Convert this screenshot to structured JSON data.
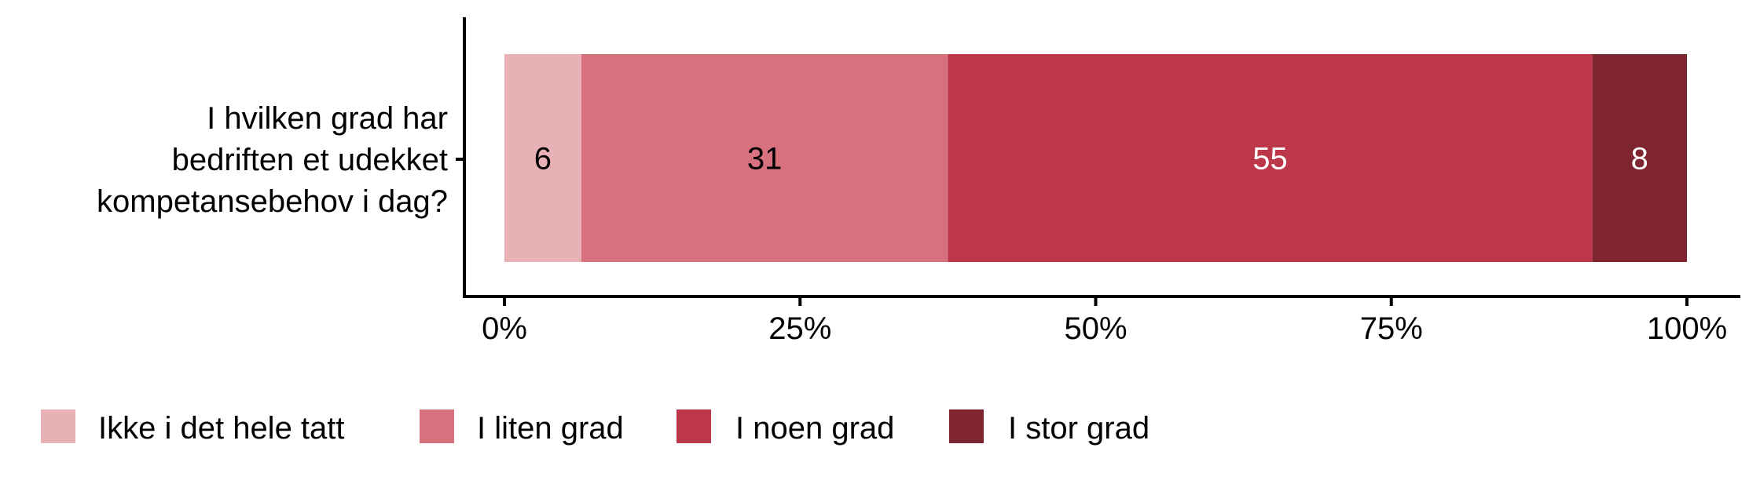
{
  "chart_data": {
    "type": "bar",
    "orientation": "horizontal",
    "stacked": true,
    "categories": [
      "I hvilken grad har bedriften et udekket kompetansebehov i dag?"
    ],
    "category_lines": [
      "I hvilken grad har",
      "bedriften et udekket",
      "kompetansebehov i dag?"
    ],
    "series": [
      {
        "name": "Ikke i det hele tatt",
        "values": [
          6.5
        ],
        "label": "6",
        "color": "#e8b1b6",
        "label_color": "#000000"
      },
      {
        "name": "I liten grad",
        "values": [
          31
        ],
        "label": "31",
        "color": "#d6717d",
        "label_color": "#000000"
      },
      {
        "name": "I noen grad",
        "values": [
          54.5
        ],
        "label": "55",
        "color": "#bc3749",
        "label_color": "#ffffff"
      },
      {
        "name": "I stor grad",
        "values": [
          8
        ],
        "label": "8",
        "color": "#7f2530",
        "label_color": "#ffffff"
      }
    ],
    "xlim": [
      0,
      100
    ],
    "x_ticks": [
      0,
      25,
      50,
      75,
      100
    ],
    "x_tick_labels": [
      "0%",
      "25%",
      "50%",
      "75%",
      "100%"
    ],
    "xlabel": "",
    "ylabel": "",
    "grid": false,
    "legend_position": "bottom"
  }
}
